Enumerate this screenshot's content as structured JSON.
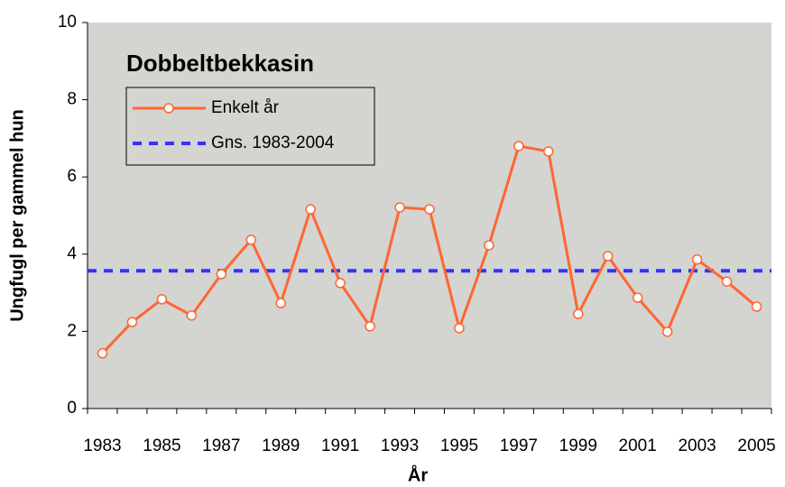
{
  "chart_data": {
    "type": "line",
    "title": "Dobbeltbekkasin",
    "xlabel": "År",
    "ylabel": "Ungfugl per gammel hun",
    "categories": [
      "1983",
      null,
      "1985",
      null,
      "1987",
      null,
      "1989",
      null,
      "1991",
      null,
      "1993",
      null,
      "1995",
      null,
      "1997",
      null,
      "1999",
      null,
      "2001",
      null,
      "2003",
      null,
      "2005"
    ],
    "series": [
      {
        "name": "Enkelt år",
        "color": "#ff6633",
        "values": [
          1.43,
          2.24,
          2.83,
          2.41,
          3.48,
          4.37,
          2.73,
          5.16,
          3.25,
          2.13,
          5.21,
          5.16,
          2.08,
          4.23,
          6.8,
          6.66,
          2.45,
          3.95,
          2.87,
          1.99,
          3.86,
          3.29,
          2.64
        ]
      }
    ],
    "reference_line": {
      "name": "Gns. 1983-2004",
      "color": "#3333ff",
      "value": 3.57
    },
    "ylim": [
      0,
      10
    ],
    "yticks": [
      0,
      2,
      4,
      6,
      8,
      10
    ],
    "grid": false
  }
}
